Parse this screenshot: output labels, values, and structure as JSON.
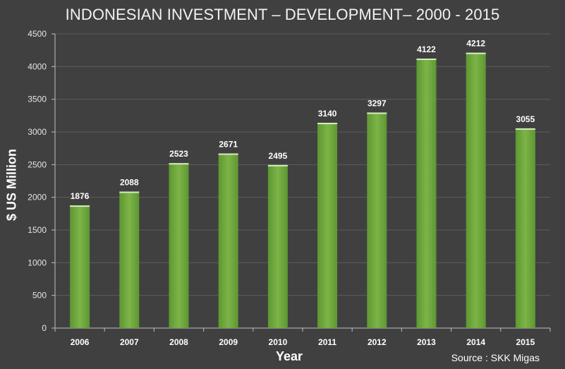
{
  "chart_data": {
    "type": "bar",
    "title": "INDONESIAN INVESTMENT – DEVELOPMENT– 2000 - 2015",
    "xlabel": "Year",
    "ylabel": "$ US Million",
    "source": "Source : SKK Migas",
    "categories": [
      "2006",
      "2007",
      "2008",
      "2009",
      "2010",
      "2011",
      "2012",
      "2013",
      "2014",
      "2015"
    ],
    "values": [
      1876,
      2088,
      2523,
      2671,
      2495,
      3140,
      3297,
      4122,
      4212,
      3055
    ],
    "data_labels": [
      "1876",
      "2088",
      "2523",
      "2671",
      "2495",
      "3140",
      "3297",
      "4122",
      "4212",
      "3055"
    ],
    "ylim": [
      0,
      4500
    ],
    "yticks": [
      0,
      500,
      1000,
      1500,
      2000,
      2500,
      3000,
      3500,
      4000,
      4500
    ],
    "ytick_labels": [
      "0",
      "500",
      "1000",
      "1500",
      "2000",
      "2500",
      "3000",
      "3500",
      "4000",
      "4500"
    ],
    "grid": true,
    "legend": "none",
    "colors": {
      "background": "#404040",
      "bar_top": "#7cb447",
      "bar_bottom": "#5e9732",
      "bar_highlight": "#d8ecc0",
      "grid": "#5b5b5b",
      "axis": "#bfbfbf",
      "text": "#ffffff"
    }
  }
}
